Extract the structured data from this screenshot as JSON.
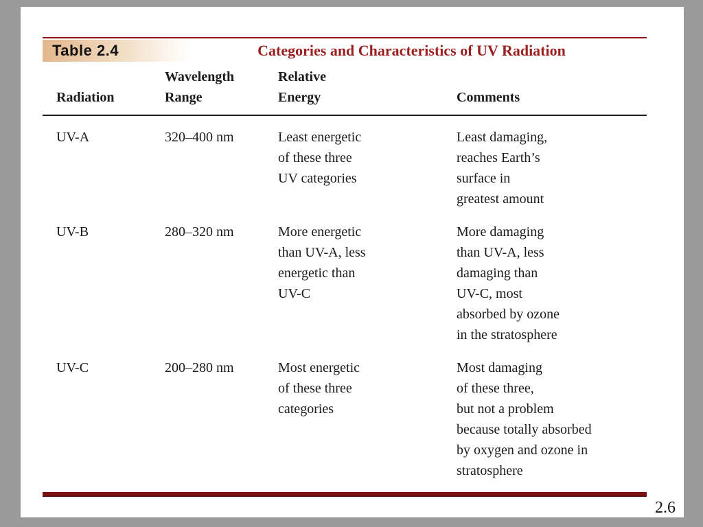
{
  "slide": {
    "page_number": "2.6"
  },
  "table": {
    "label": "Table 2.4",
    "title": "Categories and Characteristics of UV Radiation",
    "columns": [
      "Radiation",
      "Wavelength\nRange",
      "Relative\nEnergy",
      "Comments"
    ],
    "rows": [
      {
        "radiation": "UV-A",
        "wavelength_range": "320–400 nm",
        "relative_energy": "Least energetic\nof these three\nUV categories",
        "comments": "Least damaging,\nreaches Earth’s\nsurface in\ngreatest amount"
      },
      {
        "radiation": "UV-B",
        "wavelength_range": "280–320 nm",
        "relative_energy": "More energetic\nthan UV-A, less\nenergetic than\nUV-C",
        "comments": "More damaging\nthan UV-A, less\ndamaging than\nUV-C, most\nabsorbed by ozone\nin the stratosphere"
      },
      {
        "radiation": "UV-C",
        "wavelength_range": "200–280 nm",
        "relative_energy": "Most energetic\nof these three\ncategories",
        "comments": "Most damaging\nof these three,\nbut not a problem\nbecause totally absorbed\nby oxygen and ozone in\nstratosphere"
      }
    ],
    "colors": {
      "accent_red": "#9c1f1f",
      "rule_maroon": "#7c1212",
      "label_tan": "#e3b78d"
    }
  }
}
